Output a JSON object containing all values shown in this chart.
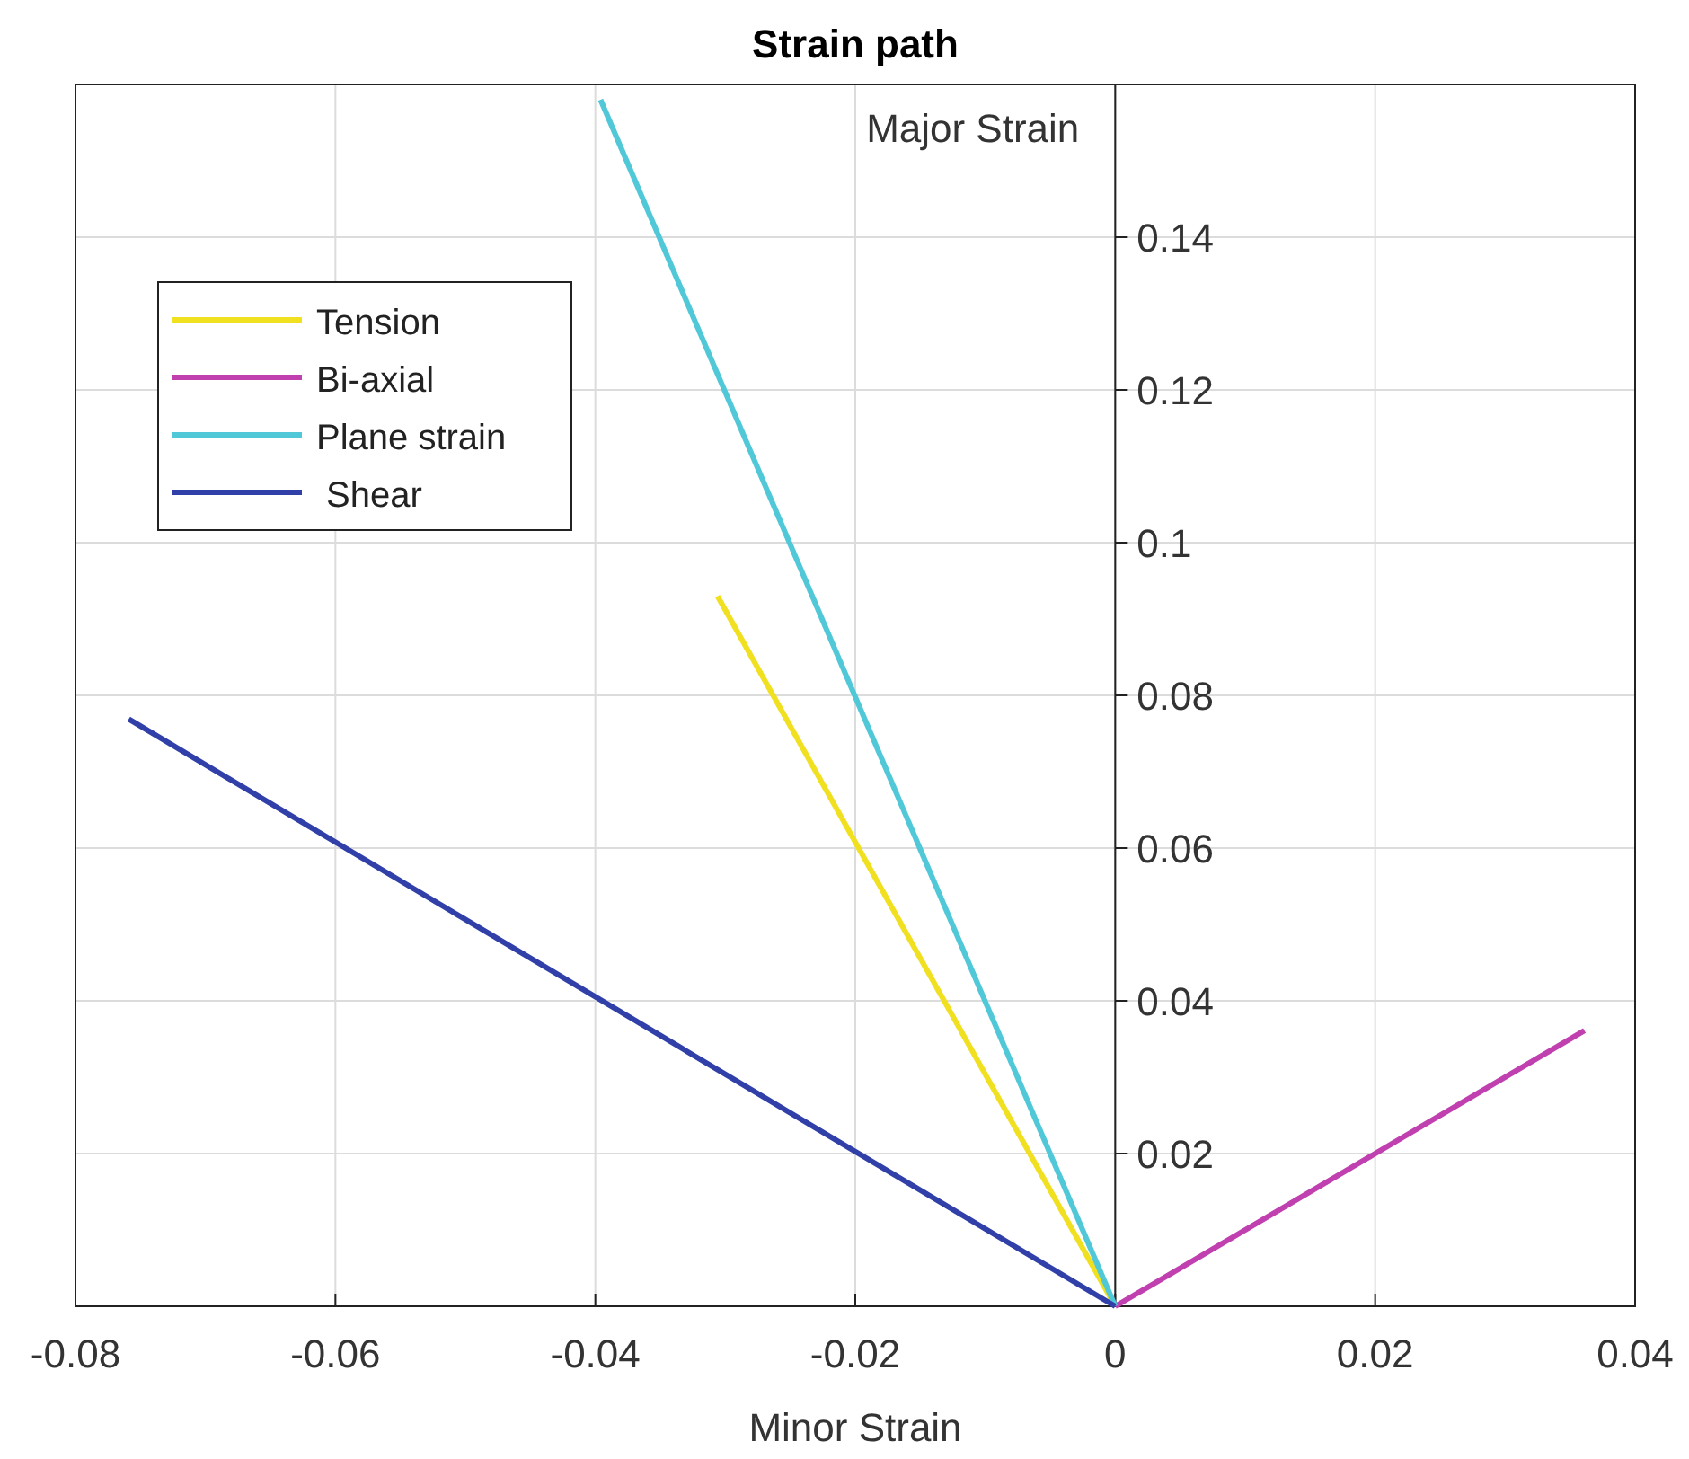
{
  "chart_data": {
    "type": "line",
    "title": "Strain path",
    "xlabel": "Minor Strain",
    "ylabel": "Major Strain",
    "xlim": [
      -0.08,
      0.04
    ],
    "xticks": [
      -0.08,
      -0.06,
      -0.04,
      -0.02,
      0,
      0.02,
      0.04
    ],
    "ylim": [
      0,
      0.16
    ],
    "yticks": [
      0.02,
      0.04,
      0.06,
      0.08,
      0.1,
      0.12,
      0.14
    ],
    "grid": true,
    "legend": "top left",
    "marker": "none",
    "line_style": "solid",
    "series": [
      {
        "name": "Tension",
        "color": "#f0e020",
        "x": [
          0,
          -0.0306
        ],
        "values": [
          0,
          0.093
        ]
      },
      {
        "name": "Bi-axial",
        "color": "#c040b0",
        "x": [
          0,
          0.0361
        ],
        "values": [
          0,
          0.0361
        ]
      },
      {
        "name": "Plane strain",
        "color": "#50c8d8",
        "x": [
          0,
          -0.0396
        ],
        "values": [
          0,
          0.158
        ]
      },
      {
        "name": " Shear",
        "color": "#3040a8",
        "x": [
          0,
          -0.0759
        ],
        "values": [
          0,
          0.0769
        ]
      }
    ]
  }
}
